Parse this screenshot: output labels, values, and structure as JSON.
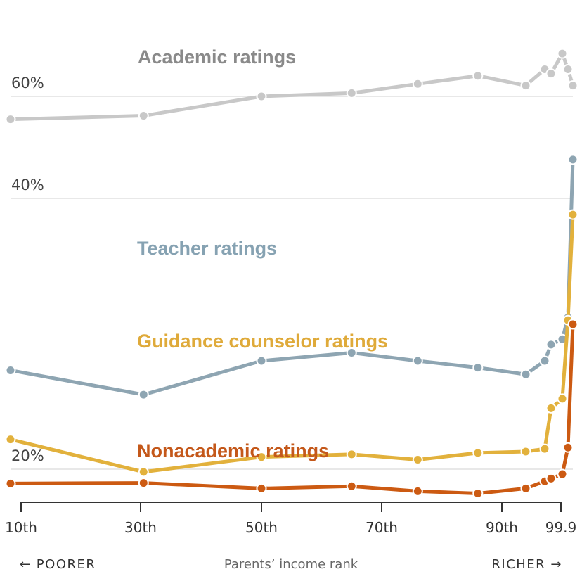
{
  "chart_data": {
    "type": "line",
    "xlabel": "Parents’ income rank",
    "ylabel": "",
    "x_ticks": [
      "10th",
      "30th",
      "50th",
      "70th",
      "90th",
      "99.9"
    ],
    "y_ticks": [
      "20%",
      "40%",
      "60%"
    ],
    "ylim": [
      14,
      70
    ],
    "grid": true,
    "legend": "direct labels on lines",
    "direction_left": "← POORER",
    "direction_right": "RICHER →",
    "x": [
      10,
      30.5,
      50,
      65,
      76,
      86,
      94,
      97,
      98,
      99,
      99.5,
      99.9
    ],
    "series": [
      {
        "name": "Academic ratings",
        "color": "#c8c8c8",
        "values": [
          55.5,
          56.2,
          60.0,
          60.6,
          62.3,
          63.8,
          62.0,
          65.0,
          64.2,
          67.9,
          65.0,
          62.0
        ]
      },
      {
        "name": "Teacher ratings",
        "color": "#8ea5b2",
        "values": [
          27.3,
          25.5,
          28.0,
          28.6,
          28.0,
          27.5,
          27.0,
          28.0,
          29.2,
          29.6,
          31.2,
          47.6
        ]
      },
      {
        "name": "Guidance counselor ratings",
        "color": "#e2b13c",
        "values": [
          22.2,
          19.5,
          20.9,
          21.1,
          20.7,
          21.2,
          21.3,
          21.5,
          24.5,
          25.2,
          31.0,
          38.8
        ]
      },
      {
        "name": "Nonacademic ratings",
        "color": "#cc5a12",
        "values": [
          17.4,
          17.5,
          16.5,
          16.9,
          16.0,
          15.6,
          16.5,
          17.8,
          18.3,
          19.1,
          21.6,
          30.7
        ]
      }
    ],
    "label_colors": {
      "Academic ratings": "#8a8a8a",
      "Teacher ratings": "#86a2b2",
      "Guidance counselor ratings": "#dfaa3a",
      "Nonacademic ratings": "#c4581a"
    }
  }
}
